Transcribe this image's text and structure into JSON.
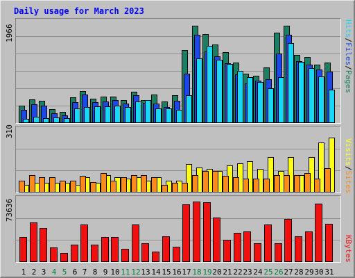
{
  "title": "Daily usage for March 2023",
  "colors": {
    "background": "#c0c0c0",
    "pages": "#1a8063",
    "files": "#1c48e8",
    "hits": "#18d8f8",
    "visits": "#ffff1a",
    "sites": "#ff8c1a",
    "kbytes": "#f01010",
    "weekend_label": "#008040",
    "weekday_label": "#000000"
  },
  "right_labels": {
    "top": [
      {
        "text": "Hits",
        "color": "#18d8f8"
      },
      {
        "text": "/",
        "color": "#000000"
      },
      {
        "text": "Files",
        "color": "#1c48e8"
      },
      {
        "text": "/",
        "color": "#000000"
      },
      {
        "text": "Pages",
        "color": "#1a8063"
      }
    ],
    "middle": [
      {
        "text": "Visits",
        "color": "#ffff1a"
      },
      {
        "text": "/",
        "color": "#000000"
      },
      {
        "text": "Sites",
        "color": "#ff8c1a"
      }
    ],
    "bottom": [
      {
        "text": "KBytes",
        "color": "#f01010"
      }
    ]
  },
  "chart_data": [
    {
      "type": "bar",
      "panel": "top",
      "ylabel": "1966",
      "ylim": [
        0,
        1966
      ],
      "grid": true,
      "categories": [
        "1",
        "2",
        "3",
        "4",
        "5",
        "6",
        "7",
        "8",
        "9",
        "10",
        "11",
        "12",
        "13",
        "14",
        "15",
        "16",
        "17",
        "18",
        "19",
        "20",
        "21",
        "22",
        "23",
        "24",
        "25",
        "26",
        "27",
        "28",
        "29",
        "30",
        "31"
      ],
      "weekend_days": [
        "4",
        "5",
        "11",
        "12",
        "18",
        "19",
        "25",
        "26"
      ],
      "series": [
        {
          "name": "Pages",
          "color_key": "pages",
          "values": [
            350,
            480,
            450,
            280,
            230,
            520,
            650,
            490,
            540,
            540,
            470,
            630,
            470,
            580,
            430,
            560,
            1480,
            1966,
            1800,
            1580,
            1430,
            1220,
            1000,
            960,
            1120,
            1820,
            1966,
            1380,
            1330,
            1180,
            1220
          ]
        },
        {
          "name": "Files",
          "color_key": "files",
          "values": [
            270,
            380,
            350,
            200,
            160,
            420,
            580,
            420,
            430,
            470,
            400,
            560,
            410,
            400,
            330,
            450,
            1000,
            1780,
            1450,
            1350,
            1210,
            980,
            800,
            850,
            890,
            1400,
            1790,
            1250,
            1180,
            1080,
            1040
          ]
        },
        {
          "name": "Hits",
          "color_key": "hits",
          "values": [
            90,
            120,
            100,
            110,
            100,
            300,
            320,
            340,
            340,
            350,
            330,
            440,
            470,
            290,
            300,
            270,
            560,
            1310,
            1560,
            1280,
            1190,
            1050,
            920,
            830,
            700,
            930,
            1610,
            1230,
            1110,
            940,
            670
          ]
        }
      ]
    },
    {
      "type": "bar",
      "panel": "middle",
      "ylabel": "310",
      "ylim": [
        0,
        310
      ],
      "grid": true,
      "categories": [
        "1",
        "2",
        "3",
        "4",
        "5",
        "6",
        "7",
        "8",
        "9",
        "10",
        "11",
        "12",
        "13",
        "14",
        "15",
        "16",
        "17",
        "18",
        "19",
        "20",
        "21",
        "22",
        "23",
        "24",
        "25",
        "26",
        "27",
        "28",
        "29",
        "30",
        "31"
      ],
      "series": [
        {
          "name": "Visits",
          "color_key": "visits",
          "values": [
            40,
            50,
            50,
            50,
            50,
            40,
            80,
            50,
            90,
            80,
            70,
            80,
            60,
            80,
            60,
            60,
            145,
            130,
            120,
            110,
            140,
            150,
            160,
            120,
            180,
            110,
            180,
            90,
            180,
            255,
            280
          ]
        },
        {
          "name": "Sites",
          "color_key": "sites",
          "values": [
            60,
            90,
            80,
            80,
            60,
            60,
            85,
            55,
            100,
            60,
            80,
            90,
            90,
            80,
            40,
            50,
            50,
            90,
            110,
            110,
            85,
            80,
            70,
            70,
            70,
            90,
            90,
            90,
            100,
            70,
            125
          ]
        }
      ]
    },
    {
      "type": "bar",
      "panel": "bottom",
      "ylabel": "73636",
      "ylim": [
        0,
        73636
      ],
      "grid": true,
      "categories": [
        "1",
        "2",
        "3",
        "4",
        "5",
        "6",
        "7",
        "8",
        "9",
        "10",
        "11",
        "12",
        "13",
        "14",
        "15",
        "16",
        "17",
        "18",
        "19",
        "20",
        "21",
        "22",
        "23",
        "24",
        "25",
        "26",
        "27",
        "28",
        "29",
        "30",
        "31"
      ],
      "series": [
        {
          "name": "KBytes",
          "color_key": "kbytes",
          "values": [
            30500,
            48000,
            41500,
            17500,
            11000,
            21500,
            46000,
            21500,
            30500,
            30500,
            16500,
            45500,
            22500,
            12500,
            31500,
            18500,
            70000,
            73636,
            72500,
            54500,
            27500,
            35500,
            37500,
            23000,
            45500,
            23000,
            52500,
            31500,
            37000,
            71500,
            46500
          ]
        }
      ]
    }
  ]
}
